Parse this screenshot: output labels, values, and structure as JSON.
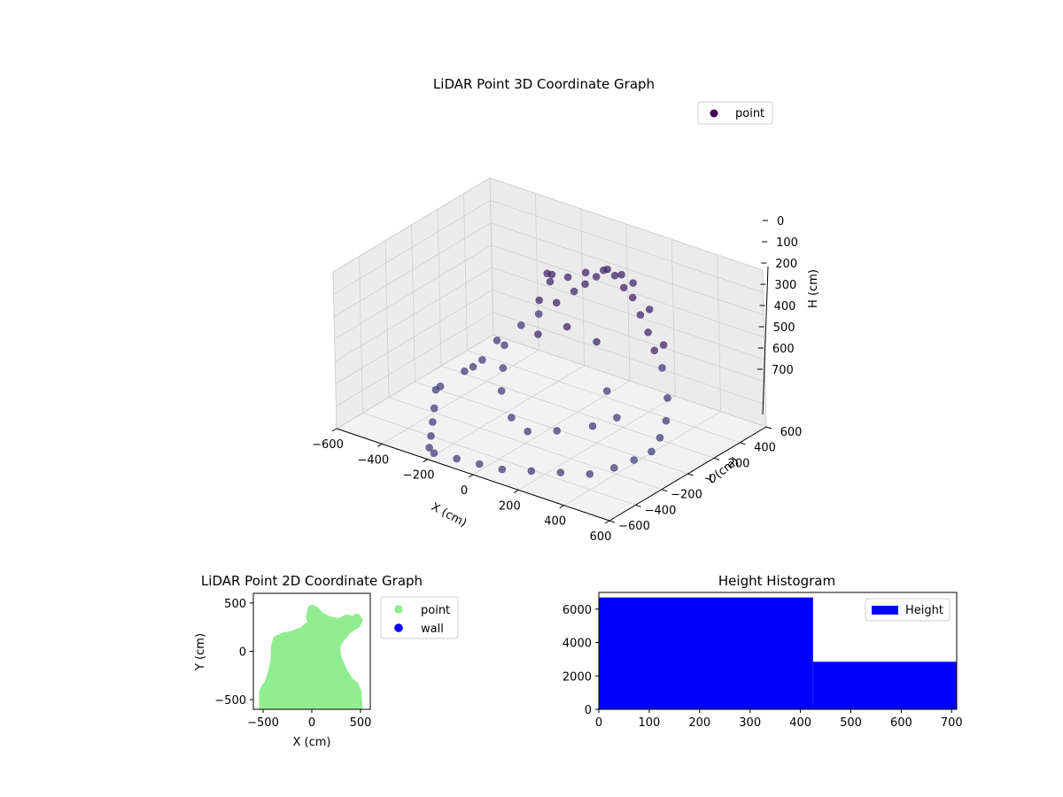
{
  "chart_data": [
    {
      "type": "scatter",
      "projection": "3d",
      "title": "LiDAR Point 3D Coordinate Graph",
      "xlabel": "X (cm)",
      "ylabel": "Y (cm)",
      "zlabel": "H (cm)",
      "xlim": [
        -600,
        600
      ],
      "ylim": [
        -600,
        600
      ],
      "zlim": [
        0,
        700
      ],
      "z_inverted": true,
      "xticks": [
        "−600",
        "−400",
        "−200",
        "0",
        "200",
        "400",
        "600"
      ],
      "yticks": [
        "−600",
        "−400",
        "−200",
        "0",
        "200",
        "400",
        "600"
      ],
      "zticks": [
        "0",
        "100",
        "200",
        "300",
        "400",
        "500",
        "600",
        "700"
      ],
      "grid": true,
      "legend": {
        "placement": "top-right",
        "entries": [
          "point"
        ]
      },
      "colormap": "viridis",
      "series": [
        {
          "name": "point",
          "color": "#440154",
          "points": [
            [
              -400,
              100,
              600
            ],
            [
              -350,
              200,
              500
            ],
            [
              -300,
              300,
              450
            ],
            [
              -250,
              350,
              400
            ],
            [
              -200,
              400,
              350
            ],
            [
              -150,
              450,
              300
            ],
            [
              -100,
              450,
              250
            ],
            [
              -50,
              450,
              200
            ],
            [
              0,
              450,
              150
            ],
            [
              50,
              420,
              150
            ],
            [
              100,
              400,
              180
            ],
            [
              150,
              380,
              200
            ],
            [
              200,
              350,
              250
            ],
            [
              250,
              320,
              300
            ],
            [
              300,
              280,
              350
            ],
            [
              350,
              250,
              400
            ],
            [
              -450,
              -100,
              650
            ],
            [
              -400,
              -200,
              680
            ],
            [
              -350,
              -300,
              690
            ],
            [
              -300,
              -400,
              700
            ],
            [
              -250,
              -500,
              700
            ],
            [
              -200,
              -550,
              690
            ],
            [
              -100,
              -550,
              680
            ],
            [
              0,
              -550,
              670
            ],
            [
              100,
              -550,
              660
            ],
            [
              200,
              -500,
              650
            ],
            [
              300,
              -450,
              640
            ],
            [
              400,
              -400,
              630
            ],
            [
              450,
              -300,
              620
            ],
            [
              480,
              -200,
              610
            ],
            [
              500,
              -100,
              600
            ],
            [
              480,
              0,
              580
            ],
            [
              450,
              100,
              550
            ],
            [
              400,
              200,
              500
            ],
            [
              300,
              350,
              350
            ],
            [
              200,
              420,
              250
            ],
            [
              -50,
              100,
              100
            ],
            [
              0,
              150,
              80
            ],
            [
              50,
              200,
              60
            ],
            [
              100,
              250,
              50
            ],
            [
              -100,
              200,
              120
            ],
            [
              -150,
              250,
              150
            ],
            [
              150,
              300,
              70
            ],
            [
              200,
              300,
              90
            ],
            [
              -200,
              0,
              400
            ],
            [
              -150,
              -100,
              450
            ],
            [
              -100,
              -200,
              500
            ],
            [
              0,
              -300,
              550
            ],
            [
              100,
              -350,
              560
            ],
            [
              200,
              -300,
              540
            ],
            [
              300,
              -200,
              520
            ],
            [
              350,
              -100,
              500
            ],
            [
              -300,
              0,
              500
            ],
            [
              -350,
              -50,
              550
            ],
            [
              -400,
              -150,
              600
            ],
            [
              250,
              0,
              450
            ],
            [
              150,
              100,
              300
            ],
            [
              50,
              50,
              250
            ],
            [
              -50,
              0,
              300
            ],
            [
              -100,
              100,
              200
            ]
          ]
        }
      ]
    },
    {
      "type": "scatter",
      "title": "LiDAR Point 2D Coordinate Graph",
      "xlabel": "X (cm)",
      "ylabel": "Y (cm)",
      "xlim": [
        -600,
        600
      ],
      "ylim": [
        -600,
        600
      ],
      "xticks": [
        "−500",
        "0",
        "500"
      ],
      "yticks": [
        "−500",
        "0",
        "500"
      ],
      "grid": false,
      "legend": {
        "placement": "outside-right",
        "entries": [
          "point",
          "wall"
        ]
      },
      "series": [
        {
          "name": "point",
          "color": "#90ee90",
          "outline": [
            [
              -500,
              -600
            ],
            [
              -500,
              -420
            ],
            [
              -480,
              -380
            ],
            [
              -450,
              -340
            ],
            [
              -420,
              -260
            ],
            [
              -400,
              -180
            ],
            [
              -380,
              -60
            ],
            [
              -380,
              40
            ],
            [
              -360,
              120
            ],
            [
              -300,
              150
            ],
            [
              -200,
              170
            ],
            [
              -100,
              210
            ],
            [
              0,
              290
            ],
            [
              -20,
              360
            ],
            [
              0,
              440
            ],
            [
              40,
              420
            ],
            [
              80,
              370
            ],
            [
              180,
              320
            ],
            [
              280,
              300
            ],
            [
              360,
              340
            ],
            [
              440,
              320
            ],
            [
              460,
              350
            ],
            [
              480,
              320
            ],
            [
              460,
              280
            ],
            [
              380,
              230
            ],
            [
              300,
              140
            ],
            [
              250,
              60
            ],
            [
              260,
              -60
            ],
            [
              320,
              -200
            ],
            [
              380,
              -300
            ],
            [
              440,
              -350
            ],
            [
              470,
              -420
            ],
            [
              480,
              -600
            ]
          ]
        },
        {
          "name": "wall",
          "color": "#0000ff",
          "points": []
        }
      ]
    },
    {
      "type": "bar",
      "title": "Height Histogram",
      "xlabel": "",
      "ylabel": "",
      "xlim": [
        0,
        710
      ],
      "ylim": [
        0,
        7000
      ],
      "xticks": [
        "0",
        "100",
        "200",
        "300",
        "400",
        "500",
        "600",
        "700"
      ],
      "yticks": [
        "0",
        "2000",
        "4000",
        "6000"
      ],
      "grid": false,
      "legend": {
        "placement": "top-right",
        "entries": [
          "Height"
        ]
      },
      "series": [
        {
          "name": "Height",
          "color": "#0000ff",
          "bins": [
            {
              "from": 0,
              "to": 425,
              "value": 6700
            },
            {
              "from": 425,
              "to": 710,
              "value": 2850
            }
          ]
        }
      ]
    }
  ]
}
